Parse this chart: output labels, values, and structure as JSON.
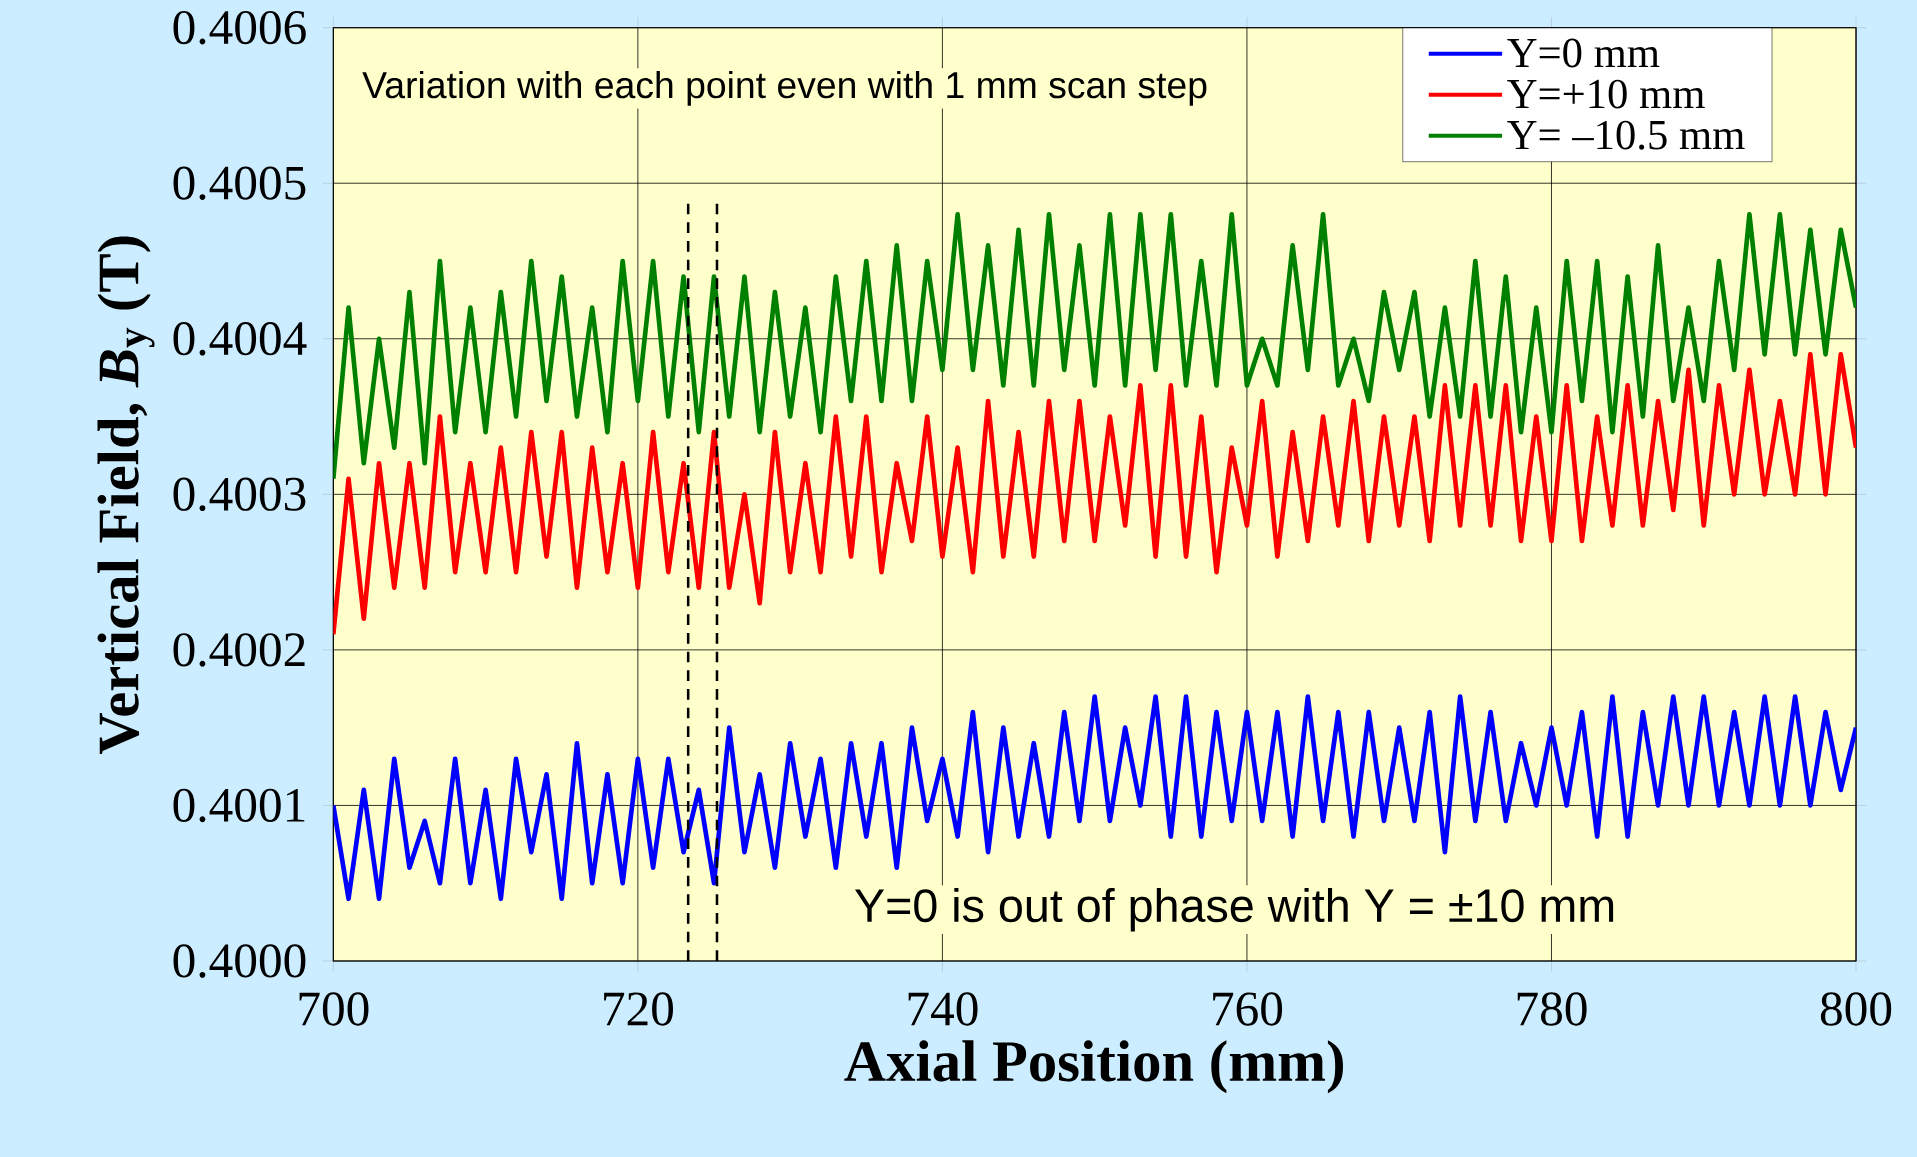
{
  "chart_data": {
    "type": "line",
    "xlabel": "Axial Position (mm)",
    "ylabel": "Vertical Field, *B*$_{y}$  (T)",
    "x": [
      700,
      701,
      702,
      703,
      704,
      705,
      706,
      707,
      708,
      709,
      710,
      711,
      712,
      713,
      714,
      715,
      716,
      717,
      718,
      719,
      720,
      721,
      722,
      723,
      724,
      725,
      726,
      727,
      728,
      729,
      730,
      731,
      732,
      733,
      734,
      735,
      736,
      737,
      738,
      739,
      740,
      741,
      742,
      743,
      744,
      745,
      746,
      747,
      748,
      749,
      750,
      751,
      752,
      753,
      754,
      755,
      756,
      757,
      758,
      759,
      760,
      761,
      762,
      763,
      764,
      765,
      766,
      767,
      768,
      769,
      770,
      771,
      772,
      773,
      774,
      775,
      776,
      777,
      778,
      779,
      780,
      781,
      782,
      783,
      784,
      785,
      786,
      787,
      788,
      789,
      790,
      791,
      792,
      793,
      794,
      795,
      796,
      797,
      798,
      799,
      800
    ],
    "series": [
      {
        "name": "Y=0 mm",
        "color": "#0000ff",
        "values": [
          0.4001,
          0.40004,
          0.40011,
          0.40004,
          0.40013,
          0.40006,
          0.40009,
          0.40005,
          0.40013,
          0.40005,
          0.40011,
          0.40004,
          0.40013,
          0.40007,
          0.40012,
          0.40004,
          0.40014,
          0.40005,
          0.40012,
          0.40005,
          0.40013,
          0.40006,
          0.40013,
          0.40007,
          0.40011,
          0.40005,
          0.40015,
          0.40007,
          0.40012,
          0.40006,
          0.40014,
          0.40008,
          0.40013,
          0.40006,
          0.40014,
          0.40008,
          0.40014,
          0.40006,
          0.40015,
          0.40009,
          0.40013,
          0.40008,
          0.40016,
          0.40007,
          0.40015,
          0.40008,
          0.40014,
          0.40008,
          0.40016,
          0.40009,
          0.40017,
          0.40009,
          0.40015,
          0.4001,
          0.40017,
          0.40008,
          0.40017,
          0.40008,
          0.40016,
          0.40009,
          0.40016,
          0.40009,
          0.40016,
          0.40008,
          0.40017,
          0.40009,
          0.40016,
          0.40008,
          0.40016,
          0.40009,
          0.40015,
          0.40009,
          0.40016,
          0.40007,
          0.40017,
          0.40009,
          0.40016,
          0.40009,
          0.40014,
          0.4001,
          0.40015,
          0.4001,
          0.40016,
          0.40008,
          0.40017,
          0.40008,
          0.40016,
          0.4001,
          0.40017,
          0.4001,
          0.40017,
          0.4001,
          0.40016,
          0.4001,
          0.40017,
          0.4001,
          0.40017,
          0.4001,
          0.40016,
          0.40011,
          0.40015
        ]
      },
      {
        "name": "Y=+10 mm",
        "color": "#ff0000",
        "values": [
          0.40021,
          0.40031,
          0.40022,
          0.40032,
          0.40024,
          0.40032,
          0.40024,
          0.40035,
          0.40025,
          0.40032,
          0.40025,
          0.40033,
          0.40025,
          0.40034,
          0.40026,
          0.40034,
          0.40024,
          0.40033,
          0.40025,
          0.40032,
          0.40024,
          0.40034,
          0.40025,
          0.40032,
          0.40024,
          0.40034,
          0.40024,
          0.4003,
          0.40023,
          0.40034,
          0.40025,
          0.40032,
          0.40025,
          0.40035,
          0.40026,
          0.40035,
          0.40025,
          0.40032,
          0.40027,
          0.40035,
          0.40026,
          0.40033,
          0.40025,
          0.40036,
          0.40026,
          0.40034,
          0.40026,
          0.40036,
          0.40027,
          0.40036,
          0.40027,
          0.40035,
          0.40028,
          0.40037,
          0.40026,
          0.40037,
          0.40026,
          0.40035,
          0.40025,
          0.40033,
          0.40028,
          0.40036,
          0.40026,
          0.40034,
          0.40027,
          0.40035,
          0.40028,
          0.40036,
          0.40027,
          0.40035,
          0.40028,
          0.40035,
          0.40027,
          0.40037,
          0.40028,
          0.40037,
          0.40028,
          0.40037,
          0.40027,
          0.40035,
          0.40027,
          0.40037,
          0.40027,
          0.40035,
          0.40028,
          0.40037,
          0.40028,
          0.40036,
          0.40029,
          0.40038,
          0.40028,
          0.40037,
          0.4003,
          0.40038,
          0.4003,
          0.40036,
          0.4003,
          0.40039,
          0.4003,
          0.40039,
          0.40033
        ]
      },
      {
        "name": "Y= –10.5 mm",
        "color": "#008000",
        "values": [
          0.40031,
          0.40042,
          0.40032,
          0.4004,
          0.40033,
          0.40043,
          0.40032,
          0.40045,
          0.40034,
          0.40042,
          0.40034,
          0.40043,
          0.40035,
          0.40045,
          0.40036,
          0.40044,
          0.40035,
          0.40042,
          0.40034,
          0.40045,
          0.40036,
          0.40045,
          0.40035,
          0.40044,
          0.40034,
          0.40044,
          0.40035,
          0.40044,
          0.40034,
          0.40043,
          0.40035,
          0.40042,
          0.40034,
          0.40044,
          0.40036,
          0.40045,
          0.40036,
          0.40046,
          0.40036,
          0.40045,
          0.40038,
          0.40048,
          0.40038,
          0.40046,
          0.40037,
          0.40047,
          0.40037,
          0.40048,
          0.40038,
          0.40046,
          0.40037,
          0.40048,
          0.40037,
          0.40048,
          0.40038,
          0.40048,
          0.40037,
          0.40045,
          0.40037,
          0.40048,
          0.40037,
          0.4004,
          0.40037,
          0.40046,
          0.40038,
          0.40048,
          0.40037,
          0.4004,
          0.40036,
          0.40043,
          0.40038,
          0.40043,
          0.40035,
          0.40042,
          0.40035,
          0.40045,
          0.40035,
          0.40044,
          0.40034,
          0.40042,
          0.40034,
          0.40045,
          0.40036,
          0.40045,
          0.40034,
          0.40044,
          0.40035,
          0.40046,
          0.40036,
          0.40042,
          0.40036,
          0.40045,
          0.40038,
          0.40048,
          0.40039,
          0.40048,
          0.40039,
          0.40047,
          0.40039,
          0.40047,
          0.40042
        ]
      }
    ],
    "xlim": [
      700,
      800
    ],
    "xticks": [
      700,
      720,
      740,
      760,
      780,
      800
    ],
    "ylim": [
      0.4,
      0.4006
    ],
    "yticks": [
      {
        "value": 0.4,
        "label": "0.4000"
      },
      {
        "value": 0.4001,
        "label": "0.4001"
      },
      {
        "value": 0.4002,
        "label": "0.4002"
      },
      {
        "value": 0.4003,
        "label": "0.4003"
      },
      {
        "value": 0.4004,
        "label": "0.4004"
      },
      {
        "value": 0.4005,
        "label": "0.4005"
      },
      {
        "value": 0.4006,
        "label": "0.4006"
      }
    ],
    "ref_lines": [
      {
        "axis": "x",
        "value": 723.3,
        "color": "#000000",
        "line_style": "dashed"
      },
      {
        "axis": "x",
        "value": 725.2,
        "color": "#000000",
        "line_style": "dashed"
      }
    ],
    "annotations": [
      "Variation with each point even with 1 mm scan step",
      "Y=0 is out of phase with Y = ±10 mm"
    ],
    "grid": true,
    "legend": "top right"
  }
}
